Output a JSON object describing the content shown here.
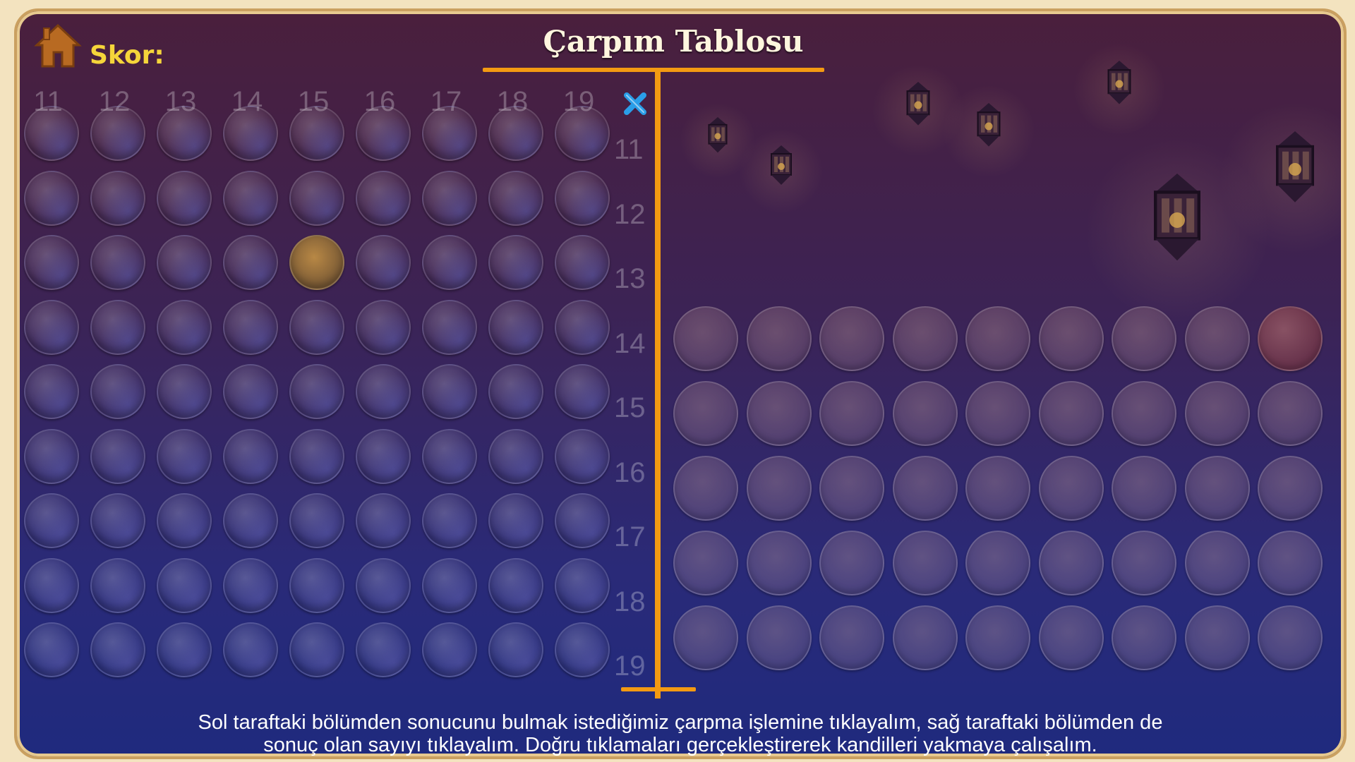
{
  "header": {
    "title": "Çarpım Tablosu",
    "score_label": "Skor:",
    "home_icon": "home-icon",
    "operator_icon": "multiply-icon"
  },
  "grid": {
    "column_numbers": [
      "11",
      "12",
      "13",
      "14",
      "15",
      "16",
      "17",
      "18",
      "19"
    ],
    "row_numbers": [
      "11",
      "12",
      "13",
      "14",
      "15",
      "16",
      "17",
      "18",
      "19"
    ],
    "highlighted_cell": {
      "row": "13",
      "column": "15"
    }
  },
  "answers": {
    "rows": 5,
    "columns": 9,
    "highlighted": {
      "row": 1,
      "column": 9
    }
  },
  "instructions": {
    "line1": "Sol taraftaki bölümden sonucunu bulmak istediğimiz çarpma işlemine tıklayalım, sağ taraftaki bölümden de",
    "line2": "sonuç olan sayıyı tıklayalım. Doğru tıklamaları gerçekleştirerek kandilleri yakmaya çalışalım."
  },
  "colors": {
    "accent": "#f39a12",
    "score": "#f5d53a",
    "frame": "#caa060"
  }
}
